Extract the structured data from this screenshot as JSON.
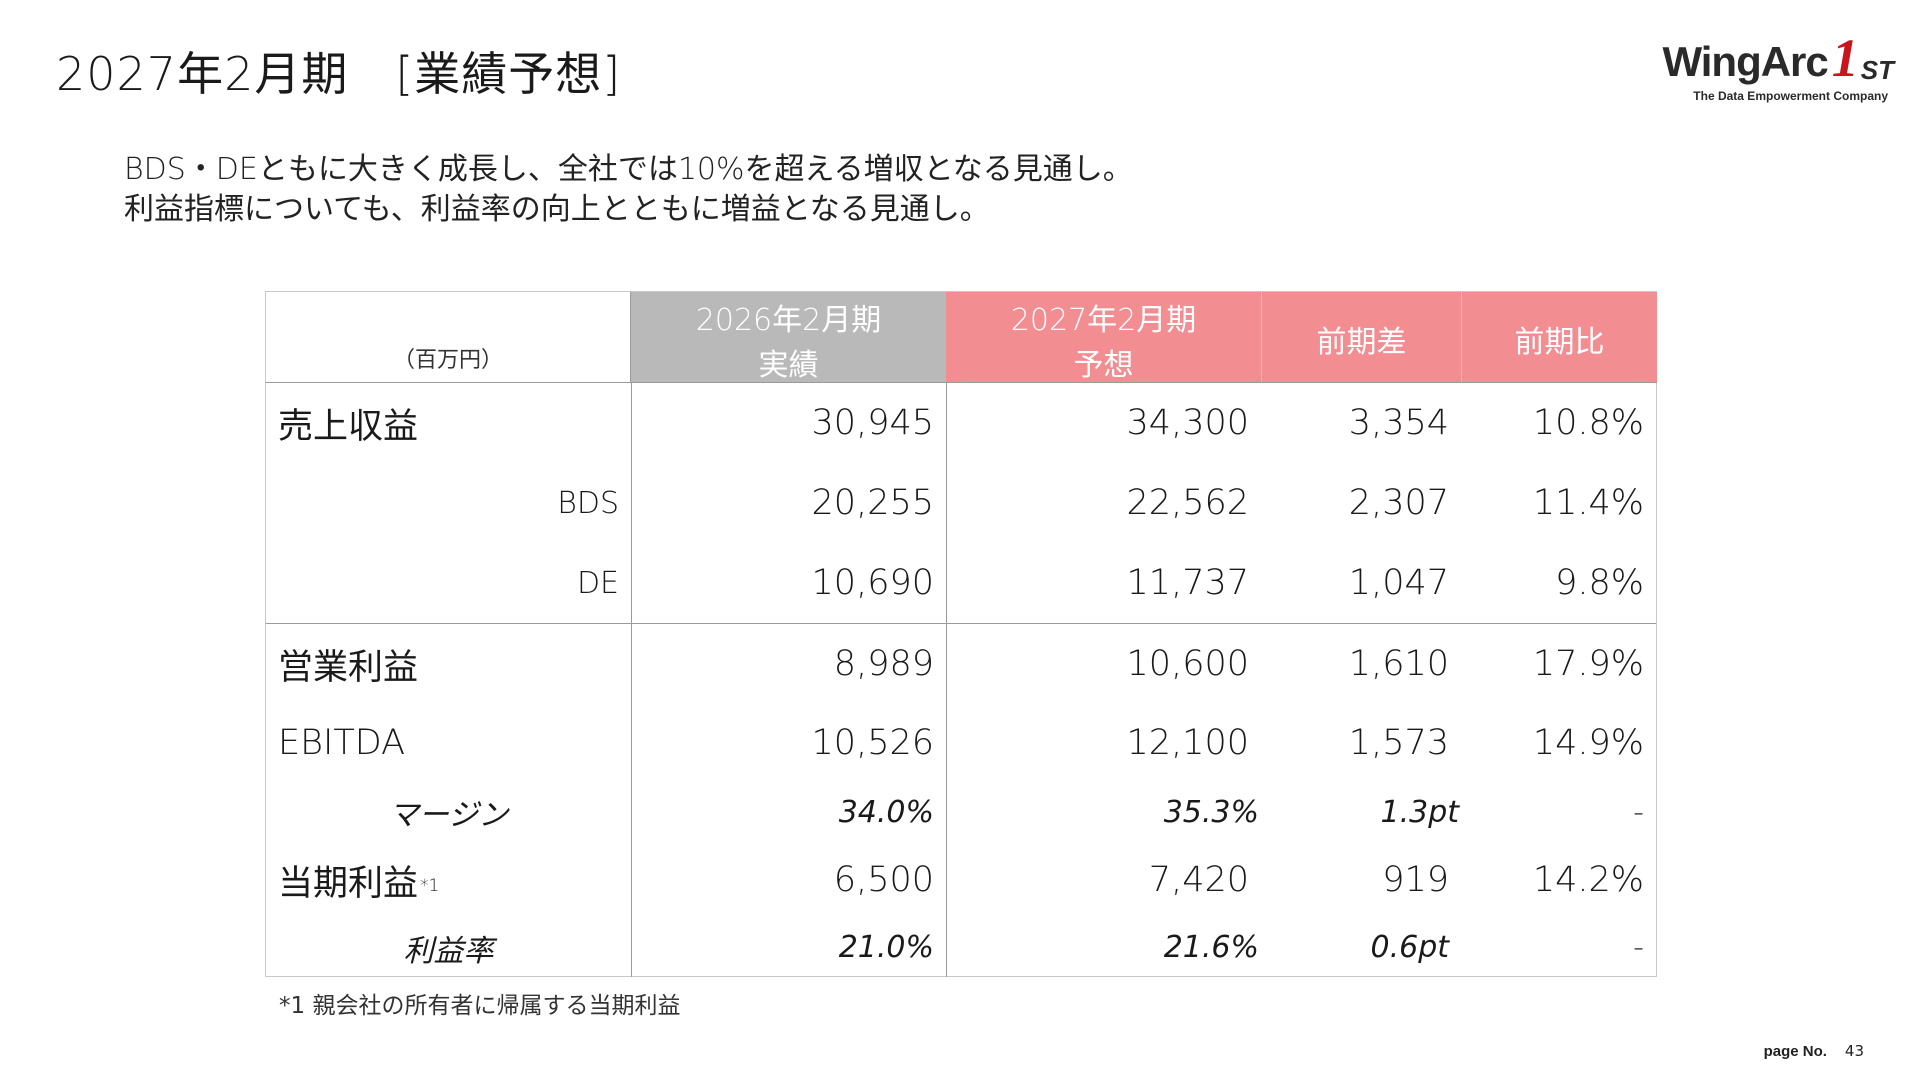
{
  "title": "2027年2月期　[業績予想]",
  "logo": {
    "word": "WingArc",
    "one": "1",
    "st": "ST",
    "tagline": "The Data Empowerment Company"
  },
  "summary": {
    "line1": "BDS・DEともに大きく成長し、全社では10%を超える増収となる見通し。",
    "line2": "利益指標についても、利益率の向上とともに増益となる見通し。"
  },
  "table": {
    "unit": "（百万円）",
    "headers": {
      "prev_line1": "2026年2月期",
      "prev_line2": "実績",
      "next_line1": "2027年2月期",
      "next_line2": "予想",
      "diff": "前期差",
      "ratio": "前期比"
    },
    "rows": [
      {
        "label": "売上収益",
        "prev": "30,945",
        "next": "34,300",
        "diff": "3,354",
        "ratio": "10.8%"
      },
      {
        "label": "BDS",
        "prev": "20,255",
        "next": "22,562",
        "diff": "2,307",
        "ratio": "11.4%"
      },
      {
        "label": "DE",
        "prev": "10,690",
        "next": "11,737",
        "diff": "1,047",
        "ratio": "9.8%"
      },
      {
        "label": "営業利益",
        "prev": "8,989",
        "next": "10,600",
        "diff": "1,610",
        "ratio": "17.9%"
      },
      {
        "label": "EBITDA",
        "prev": "10,526",
        "next": "12,100",
        "diff": "1,573",
        "ratio": "14.9%"
      },
      {
        "label": "マージン",
        "prev": "34.0%",
        "next": "35.3%",
        "diff": "1.3pt",
        "ratio": "-"
      },
      {
        "label": "当期利益",
        "note": "*1",
        "prev": "6,500",
        "next": "7,420",
        "diff": "919",
        "ratio": "14.2%"
      },
      {
        "label": "利益率",
        "prev": "21.0%",
        "next": "21.6%",
        "diff": "0.6pt",
        "ratio": "-"
      }
    ]
  },
  "footnote": "*1 親会社の所有者に帰属する当期利益",
  "page": {
    "label": "page No.",
    "number": "43"
  },
  "colors": {
    "actual_header": "#b9b9b9",
    "forecast_header": "#f28d92",
    "logo_accent": "#c8161d"
  }
}
